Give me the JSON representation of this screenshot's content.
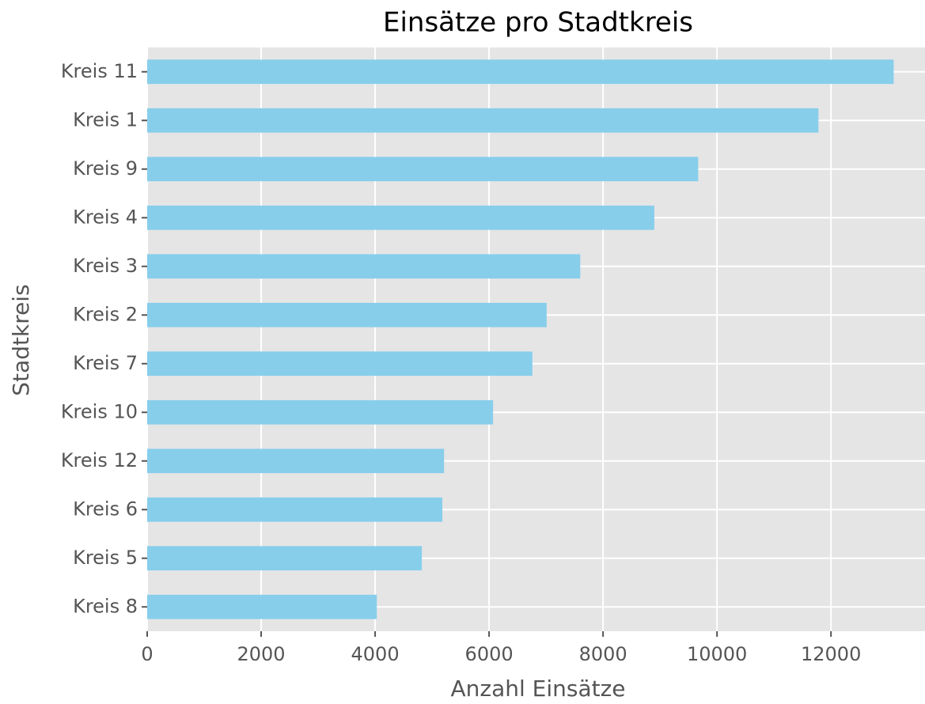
{
  "chart_data": {
    "type": "barh",
    "title": "Einsätze pro Stadtkreis",
    "xlabel": "Anzahl Einsätze",
    "ylabel": "Stadtkreis",
    "categories": [
      "Kreis 11",
      "Kreis 1",
      "Kreis 9",
      "Kreis 4",
      "Kreis 3",
      "Kreis 2",
      "Kreis 7",
      "Kreis 10",
      "Kreis 12",
      "Kreis 6",
      "Kreis 5",
      "Kreis 8"
    ],
    "values": [
      13100,
      11780,
      9670,
      8900,
      7600,
      7010,
      6760,
      6070,
      5210,
      5180,
      4820,
      4030
    ],
    "color": "#87ceeb",
    "xlim": [
      0,
      13650
    ],
    "xticks": [
      0,
      2000,
      4000,
      6000,
      8000,
      10000,
      12000
    ],
    "grid": true
  }
}
